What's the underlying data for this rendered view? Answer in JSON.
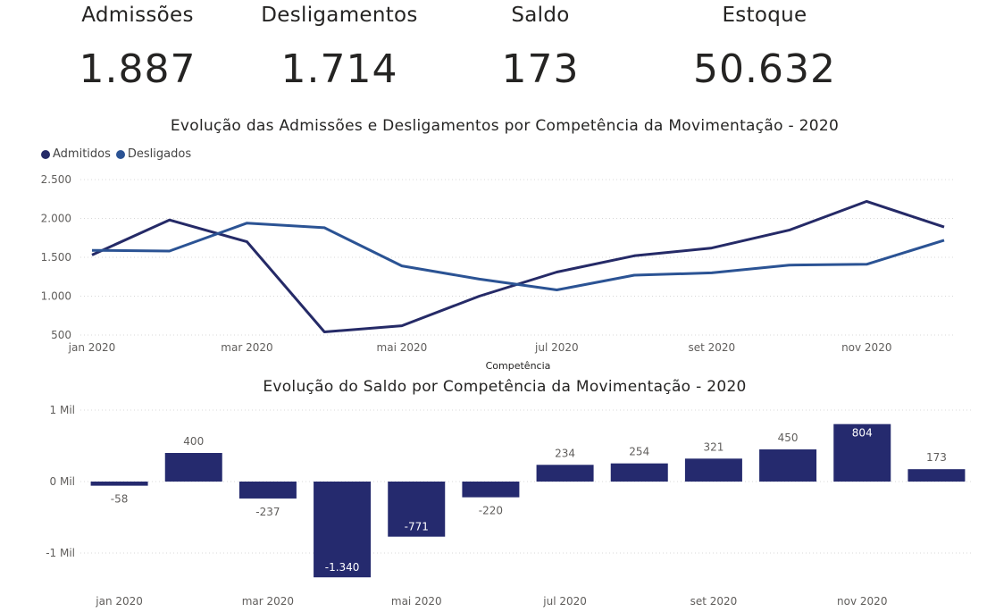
{
  "kpis": [
    {
      "label": "Admissões",
      "value": "1.887"
    },
    {
      "label": "Desligamentos",
      "value": "1.714"
    },
    {
      "label": "Saldo",
      "value": "173"
    },
    {
      "label": "Estoque",
      "value": "50.632"
    }
  ],
  "colors": {
    "admitidos": "#252a67",
    "desligados": "#2b5394",
    "bars": "#252a6e",
    "grid": "#d8d8d8"
  },
  "chart_data": [
    {
      "type": "line",
      "title": "Evolução das Admissões e Desligamentos por Competência da Movimentação - 2020",
      "xlabel": "Competência",
      "ylabel": "",
      "legend_position": "top-left",
      "grid": true,
      "ylim": [
        500,
        2500
      ],
      "yticks": [
        500,
        1000,
        1500,
        2000,
        2500
      ],
      "ytick_labels": [
        "500",
        "1.000",
        "1.500",
        "2.000",
        "2.500"
      ],
      "categories": [
        "jan 2020",
        "fev 2020",
        "mar 2020",
        "abr 2020",
        "mai 2020",
        "jun 2020",
        "jul 2020",
        "ago 2020",
        "set 2020",
        "out 2020",
        "nov 2020",
        "dez 2020"
      ],
      "xtick_labels": [
        "jan 2020",
        "",
        "mar 2020",
        "",
        "mai 2020",
        "",
        "jul 2020",
        "",
        "set 2020",
        "",
        "nov 2020",
        ""
      ],
      "series": [
        {
          "name": "Admitidos",
          "values": [
            1530,
            1980,
            1700,
            540,
            620,
            1000,
            1310,
            1520,
            1620,
            1850,
            2220,
            1890
          ]
        },
        {
          "name": "Desligados",
          "values": [
            1590,
            1580,
            1940,
            1880,
            1390,
            1220,
            1080,
            1270,
            1300,
            1400,
            1410,
            1720
          ]
        }
      ]
    },
    {
      "type": "bar",
      "title": "Evolução do Saldo por Competência da Movimentação - 2020",
      "xlabel": "",
      "ylabel": "",
      "grid": true,
      "ylim": [
        -1340,
        1000
      ],
      "yticks": [
        -1000,
        0,
        1000
      ],
      "ytick_labels": [
        "-1 Mil",
        "0 Mil",
        "1 Mil"
      ],
      "categories": [
        "jan 2020",
        "fev 2020",
        "mar 2020",
        "abr 2020",
        "mai 2020",
        "jun 2020",
        "jul 2020",
        "ago 2020",
        "set 2020",
        "out 2020",
        "nov 2020",
        "dez 2020"
      ],
      "xtick_labels": [
        "jan 2020",
        "",
        "mar 2020",
        "",
        "mai 2020",
        "",
        "jul 2020",
        "",
        "set 2020",
        "",
        "nov 2020",
        ""
      ],
      "values": [
        -58,
        400,
        -237,
        -1340,
        -771,
        -220,
        234,
        254,
        321,
        450,
        804,
        173
      ],
      "value_labels": [
        "-58",
        "400",
        "-237",
        "-1.340",
        "-771",
        "-220",
        "234",
        "254",
        "321",
        "450",
        "804",
        "173"
      ]
    }
  ]
}
